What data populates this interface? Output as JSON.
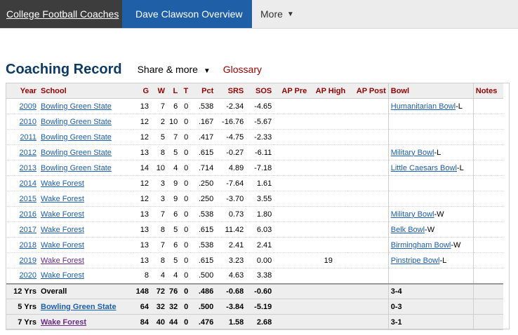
{
  "nav": {
    "tab1": "College Football Coaches",
    "tab2": "Dave Clawson Overview",
    "tab3": "More"
  },
  "section": {
    "title": "Coaching Record",
    "share": "Share & more",
    "glossary": "Glossary"
  },
  "table": {
    "headers": [
      "Year",
      "School",
      "G",
      "W",
      "L",
      "T",
      "Pct",
      "SRS",
      "SOS",
      "AP Pre",
      "AP High",
      "AP Post",
      "Bowl",
      "Notes"
    ],
    "rows": [
      {
        "year": "2009",
        "school": "Bowling Green State",
        "g": "13",
        "w": "7",
        "l": "6",
        "t": "0",
        "pct": ".538",
        "srs": "-2.34",
        "sos": "-4.65",
        "ap_pre": "",
        "ap_high": "",
        "ap_post": "",
        "bowl": "Humanitarian Bowl",
        "bowl_result": "-L",
        "notes": ""
      },
      {
        "year": "2010",
        "school": "Bowling Green State",
        "g": "12",
        "w": "2",
        "l": "10",
        "t": "0",
        "pct": ".167",
        "srs": "-16.76",
        "sos": "-5.67",
        "ap_pre": "",
        "ap_high": "",
        "ap_post": "",
        "bowl": "",
        "bowl_result": "",
        "notes": ""
      },
      {
        "year": "2011",
        "school": "Bowling Green State",
        "g": "12",
        "w": "5",
        "l": "7",
        "t": "0",
        "pct": ".417",
        "srs": "-4.75",
        "sos": "-2.33",
        "ap_pre": "",
        "ap_high": "",
        "ap_post": "",
        "bowl": "",
        "bowl_result": "",
        "notes": ""
      },
      {
        "year": "2012",
        "school": "Bowling Green State",
        "g": "13",
        "w": "8",
        "l": "5",
        "t": "0",
        "pct": ".615",
        "srs": "-0.27",
        "sos": "-6.11",
        "ap_pre": "",
        "ap_high": "",
        "ap_post": "",
        "bowl": "Military Bowl",
        "bowl_result": "-L",
        "notes": ""
      },
      {
        "year": "2013",
        "school": "Bowling Green State",
        "g": "14",
        "w": "10",
        "l": "4",
        "t": "0",
        "pct": ".714",
        "srs": "4.89",
        "sos": "-7.18",
        "ap_pre": "",
        "ap_high": "",
        "ap_post": "",
        "bowl": "Little Caesars Bowl",
        "bowl_result": "-L",
        "notes": ""
      },
      {
        "year": "2014",
        "school": "Wake Forest",
        "g": "12",
        "w": "3",
        "l": "9",
        "t": "0",
        "pct": ".250",
        "srs": "-7.64",
        "sos": "1.61",
        "ap_pre": "",
        "ap_high": "",
        "ap_post": "",
        "bowl": "",
        "bowl_result": "",
        "notes": ""
      },
      {
        "year": "2015",
        "school": "Wake Forest",
        "g": "12",
        "w": "3",
        "l": "9",
        "t": "0",
        "pct": ".250",
        "srs": "-3.70",
        "sos": "3.55",
        "ap_pre": "",
        "ap_high": "",
        "ap_post": "",
        "bowl": "",
        "bowl_result": "",
        "notes": ""
      },
      {
        "year": "2016",
        "school": "Wake Forest",
        "g": "13",
        "w": "7",
        "l": "6",
        "t": "0",
        "pct": ".538",
        "srs": "0.73",
        "sos": "1.80",
        "ap_pre": "",
        "ap_high": "",
        "ap_post": "",
        "bowl": "Military Bowl",
        "bowl_result": "-W",
        "notes": ""
      },
      {
        "year": "2017",
        "school": "Wake Forest",
        "g": "13",
        "w": "8",
        "l": "5",
        "t": "0",
        "pct": ".615",
        "srs": "11.42",
        "sos": "6.03",
        "ap_pre": "",
        "ap_high": "",
        "ap_post": "",
        "bowl": "Belk Bowl",
        "bowl_result": "-W",
        "notes": ""
      },
      {
        "year": "2018",
        "school": "Wake Forest",
        "g": "13",
        "w": "7",
        "l": "6",
        "t": "0",
        "pct": ".538",
        "srs": "2.41",
        "sos": "2.41",
        "ap_pre": "",
        "ap_high": "",
        "ap_post": "",
        "bowl": "Birmingham Bowl",
        "bowl_result": "-W",
        "notes": ""
      },
      {
        "year": "2019",
        "school": "Wake Forest",
        "g": "13",
        "w": "8",
        "l": "5",
        "t": "0",
        "pct": ".615",
        "srs": "3.23",
        "sos": "0.00",
        "ap_pre": "",
        "ap_high": "19",
        "ap_post": "",
        "bowl": "Pinstripe Bowl",
        "bowl_result": "-L",
        "notes": ""
      },
      {
        "year": "2020",
        "school": "Wake Forest",
        "g": "8",
        "w": "4",
        "l": "4",
        "t": "0",
        "pct": ".500",
        "srs": "4.63",
        "sos": "3.38",
        "ap_pre": "",
        "ap_high": "",
        "ap_post": "",
        "bowl": "",
        "bowl_result": "",
        "notes": ""
      }
    ],
    "footer": [
      {
        "years": "12 Yrs",
        "label": "Overall",
        "g": "148",
        "w": "72",
        "l": "76",
        "t": "0",
        "pct": ".486",
        "srs": "-0.68",
        "sos": "-0.60",
        "bowl": "3-4"
      },
      {
        "years": "5 Yrs",
        "label": "Bowling Green State",
        "g": "64",
        "w": "32",
        "l": "32",
        "t": "0",
        "pct": ".500",
        "srs": "-3.84",
        "sos": "-5.19",
        "bowl": "0-3"
      },
      {
        "years": "7 Yrs",
        "label": "Wake Forest",
        "g": "84",
        "w": "40",
        "l": "44",
        "t": "0",
        "pct": ".476",
        "srs": "1.58",
        "sos": "2.68",
        "bowl": "3-1"
      }
    ]
  }
}
